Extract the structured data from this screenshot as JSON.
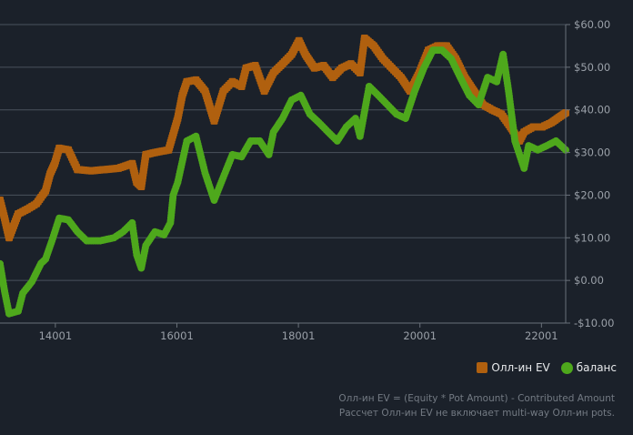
{
  "chart_data": {
    "type": "line",
    "title": "",
    "xlabel": "",
    "ylabel": "",
    "xlim": [
      13090,
      22400
    ],
    "ylim": [
      -10,
      60
    ],
    "x_ticks": [
      14001,
      16001,
      18001,
      20001,
      22001
    ],
    "x_tick_labels": [
      "14001",
      "16001",
      "18001",
      "20001",
      "22001"
    ],
    "y_ticks": [
      60,
      50,
      40,
      30,
      20,
      10,
      0,
      -10
    ],
    "y_tick_labels": [
      "$60.00",
      "$50.00",
      "$40.00",
      "$30.00",
      "$20.00",
      "$10.00",
      "$0.00",
      "-$10.00"
    ],
    "grid": true,
    "legend_position": "bottom-right",
    "series": [
      {
        "name": "Олл-ин EV",
        "color": "#b0600f",
        "marker": "square",
        "points": [
          [
            13090,
            18.8
          ],
          [
            13165,
            14.6
          ],
          [
            13240,
            10
          ],
          [
            13390,
            15.6
          ],
          [
            13540,
            16.7
          ],
          [
            13690,
            18
          ],
          [
            13840,
            21
          ],
          [
            13915,
            25
          ],
          [
            13990,
            27.4
          ],
          [
            14065,
            31
          ],
          [
            14215,
            30.6
          ],
          [
            14365,
            26
          ],
          [
            14590,
            25.7
          ],
          [
            14815,
            26
          ],
          [
            15040,
            26.3
          ],
          [
            15265,
            27.4
          ],
          [
            15340,
            23
          ],
          [
            15415,
            22
          ],
          [
            15490,
            29.5
          ],
          [
            15640,
            30
          ],
          [
            15865,
            30.6
          ],
          [
            16015,
            38
          ],
          [
            16090,
            43.4
          ],
          [
            16165,
            46.6
          ],
          [
            16315,
            47
          ],
          [
            16465,
            44.4
          ],
          [
            16615,
            37.4
          ],
          [
            16765,
            44.4
          ],
          [
            16915,
            46.6
          ],
          [
            17065,
            45.5
          ],
          [
            17140,
            49.8
          ],
          [
            17290,
            50.4
          ],
          [
            17440,
            44.4
          ],
          [
            17590,
            48.7
          ],
          [
            17740,
            50.8
          ],
          [
            17890,
            53
          ],
          [
            18010,
            56.2
          ],
          [
            18115,
            53
          ],
          [
            18265,
            49.8
          ],
          [
            18415,
            50.4
          ],
          [
            18565,
            47.6
          ],
          [
            18715,
            49.8
          ],
          [
            18865,
            50.8
          ],
          [
            19015,
            48.7
          ],
          [
            19090,
            56.8
          ],
          [
            19240,
            55
          ],
          [
            19390,
            52
          ],
          [
            19540,
            49.8
          ],
          [
            19690,
            47.6
          ],
          [
            19840,
            44.4
          ],
          [
            19990,
            48.7
          ],
          [
            20140,
            54
          ],
          [
            20290,
            55
          ],
          [
            20440,
            55
          ],
          [
            20590,
            52
          ],
          [
            20740,
            47.6
          ],
          [
            20890,
            44.4
          ],
          [
            21040,
            41.2
          ],
          [
            21190,
            40
          ],
          [
            21340,
            39
          ],
          [
            21490,
            36
          ],
          [
            21640,
            32.7
          ],
          [
            21715,
            34.8
          ],
          [
            21865,
            36
          ],
          [
            22015,
            36
          ],
          [
            22165,
            37
          ],
          [
            22315,
            38.5
          ],
          [
            22400,
            39.3
          ]
        ]
      },
      {
        "name": "баланс",
        "color": "#4ea81c",
        "marker": "circle",
        "points": [
          [
            13090,
            3.9
          ],
          [
            13165,
            -2.5
          ],
          [
            13240,
            -7.8
          ],
          [
            13390,
            -7.2
          ],
          [
            13465,
            -3
          ],
          [
            13615,
            -0.3
          ],
          [
            13765,
            4
          ],
          [
            13840,
            5
          ],
          [
            13945,
            9.3
          ],
          [
            14065,
            14.6
          ],
          [
            14215,
            14.2
          ],
          [
            14365,
            11.4
          ],
          [
            14515,
            9.3
          ],
          [
            14740,
            9.3
          ],
          [
            14965,
            10
          ],
          [
            15115,
            11.4
          ],
          [
            15265,
            13.5
          ],
          [
            15340,
            6
          ],
          [
            15415,
            2.9
          ],
          [
            15490,
            8.2
          ],
          [
            15640,
            11.4
          ],
          [
            15790,
            10.7
          ],
          [
            15895,
            13.5
          ],
          [
            15940,
            20
          ],
          [
            16015,
            23
          ],
          [
            16165,
            32.7
          ],
          [
            16315,
            33.8
          ],
          [
            16465,
            25.2
          ],
          [
            16615,
            18.8
          ],
          [
            16765,
            24.2
          ],
          [
            16915,
            29.5
          ],
          [
            17065,
            29
          ],
          [
            17215,
            32.7
          ],
          [
            17365,
            32.7
          ],
          [
            17515,
            29.5
          ],
          [
            17590,
            34.8
          ],
          [
            17740,
            38
          ],
          [
            17890,
            42.3
          ],
          [
            18040,
            43.4
          ],
          [
            18190,
            39
          ],
          [
            18340,
            37
          ],
          [
            18490,
            34.8
          ],
          [
            18640,
            32.7
          ],
          [
            18790,
            36
          ],
          [
            18940,
            38
          ],
          [
            19015,
            33.8
          ],
          [
            19165,
            45.5
          ],
          [
            19315,
            43.4
          ],
          [
            19465,
            41.2
          ],
          [
            19615,
            39
          ],
          [
            19765,
            38
          ],
          [
            19915,
            44.4
          ],
          [
            20065,
            49.8
          ],
          [
            20215,
            54
          ],
          [
            20365,
            54
          ],
          [
            20515,
            52
          ],
          [
            20665,
            47.6
          ],
          [
            20815,
            43.4
          ],
          [
            20965,
            41.2
          ],
          [
            21115,
            47.6
          ],
          [
            21265,
            46.6
          ],
          [
            21370,
            53
          ],
          [
            21460,
            44.4
          ],
          [
            21565,
            32.7
          ],
          [
            21715,
            26.3
          ],
          [
            21790,
            31.6
          ],
          [
            21940,
            30.6
          ],
          [
            22090,
            31.6
          ],
          [
            22240,
            32.7
          ],
          [
            22400,
            30.6
          ]
        ]
      }
    ]
  },
  "legend": {
    "ev_label": "Олл-ин EV",
    "balance_label": "баланс"
  },
  "notes": {
    "line1": "Олл-ин EV = (Equity * Pot Amount) - Contributed Amount",
    "line2": "Рассчет Олл-ин EV не включает multi-way Олл-ин pots."
  }
}
